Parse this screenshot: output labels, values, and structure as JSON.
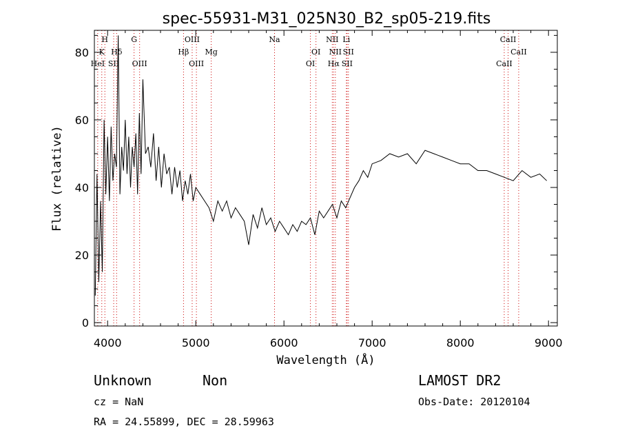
{
  "chart_data": {
    "type": "line",
    "title": "spec-55931-M31_025N30_B2_sp05-219.fits",
    "xlabel": "Wavelength (Å)",
    "ylabel": "Flux (relative)",
    "xlim": [
      3850,
      9100
    ],
    "ylim": [
      -1,
      86.5
    ],
    "xticks": [
      4000,
      5000,
      6000,
      7000,
      8000,
      9000
    ],
    "yticks": [
      0,
      20,
      40,
      60,
      80
    ],
    "grid": false,
    "line_color": "#000000",
    "marker_color": "#cc0000",
    "series": [
      {
        "x": [
          3860,
          3880,
          3900,
          3920,
          3940,
          3960,
          3980,
          4000,
          4020,
          4040,
          4060,
          4080,
          4100,
          4120,
          4140,
          4160,
          4180,
          4200,
          4220,
          4240,
          4260,
          4280,
          4300,
          4320,
          4340,
          4360,
          4380,
          4400,
          4430,
          4460,
          4490,
          4520,
          4550,
          4580,
          4610,
          4640,
          4670,
          4700,
          4730,
          4760,
          4790,
          4820,
          4850,
          4880,
          4910,
          4940,
          4970,
          5000,
          5050,
          5100,
          5150,
          5200,
          5250,
          5300,
          5350,
          5400,
          5450,
          5500,
          5550,
          5600,
          5650,
          5700,
          5750,
          5800,
          5850,
          5900,
          5950,
          6000,
          6050,
          6100,
          6150,
          6200,
          6250,
          6300,
          6350,
          6400,
          6450,
          6500,
          6550,
          6600,
          6650,
          6700,
          6750,
          6800,
          6850,
          6900,
          6950,
          7000,
          7100,
          7200,
          7300,
          7400,
          7500,
          7600,
          7700,
          7800,
          7900,
          8000,
          8100,
          8200,
          8300,
          8400,
          8500,
          8600,
          8700,
          8800,
          8900,
          8980
        ],
        "values": [
          8,
          44,
          12,
          36,
          15,
          60,
          38,
          55,
          36,
          58,
          42,
          50,
          46,
          85,
          38,
          52,
          45,
          60,
          44,
          55,
          40,
          52,
          46,
          56,
          38,
          62,
          44,
          72,
          50,
          52,
          46,
          56,
          42,
          52,
          40,
          50,
          44,
          46,
          38,
          46,
          40,
          45,
          36,
          42,
          38,
          44,
          36,
          40,
          38,
          36,
          34,
          30,
          36,
          33,
          36,
          31,
          34,
          32,
          30,
          23,
          32,
          28,
          34,
          29,
          31,
          27,
          30,
          28,
          26,
          29,
          27,
          30,
          29,
          31,
          26,
          33,
          31,
          33,
          35,
          31,
          36,
          34,
          37,
          40,
          42,
          45,
          43,
          47,
          48,
          50,
          49,
          50,
          47,
          51,
          50,
          49,
          48,
          47,
          47,
          45,
          45,
          44,
          43,
          42,
          45,
          43,
          44,
          42
        ]
      }
    ],
    "lines": [
      {
        "label": "HeI",
        "wavelength": 3888,
        "row": 0
      },
      {
        "label": "K",
        "wavelength": 3934,
        "row": 1
      },
      {
        "label": "H",
        "wavelength": 3969,
        "row": 2
      },
      {
        "label": "SII",
        "wavelength": 4069,
        "row": 0
      },
      {
        "label": "Hδ",
        "wavelength": 4102,
        "row": 1
      },
      {
        "label": "G",
        "wavelength": 4300,
        "row": 2
      },
      {
        "label": "OIII",
        "wavelength": 4363,
        "row": 0
      },
      {
        "label": "Hβ",
        "wavelength": 4861,
        "row": 1
      },
      {
        "label": "OIII",
        "wavelength": 4959,
        "row": 2
      },
      {
        "label": "OIII",
        "wavelength": 5007,
        "row": 0
      },
      {
        "label": "Mg",
        "wavelength": 5175,
        "row": 1
      },
      {
        "label": "Na",
        "wavelength": 5893,
        "row": 2
      },
      {
        "label": "OI",
        "wavelength": 6300,
        "row": 0
      },
      {
        "label": "OI",
        "wavelength": 6363,
        "row": 1
      },
      {
        "label": "NII",
        "wavelength": 6548,
        "row": 2
      },
      {
        "label": "Hα",
        "wavelength": 6563,
        "row": 0
      },
      {
        "label": "NII",
        "wavelength": 6583,
        "row": 1
      },
      {
        "label": "Li",
        "wavelength": 6708,
        "row": 2
      },
      {
        "label": "SII",
        "wavelength": 6716,
        "row": 0
      },
      {
        "label": "SII",
        "wavelength": 6731,
        "row": 1
      },
      {
        "label": "CaII",
        "wavelength": 8498,
        "row": 0
      },
      {
        "label": "CaII",
        "wavelength": 8542,
        "row": 2
      },
      {
        "label": "CaII",
        "wavelength": 8662,
        "row": 1
      }
    ]
  },
  "footer": {
    "class_text": "Unknown",
    "subclass_text": "Non",
    "survey_text": "LAMOST DR2",
    "cz_text": "cz = NaN",
    "obsdate_text": "Obs-Date: 20120104",
    "radec_text": "RA =  24.55899, DEC =  28.59963"
  }
}
